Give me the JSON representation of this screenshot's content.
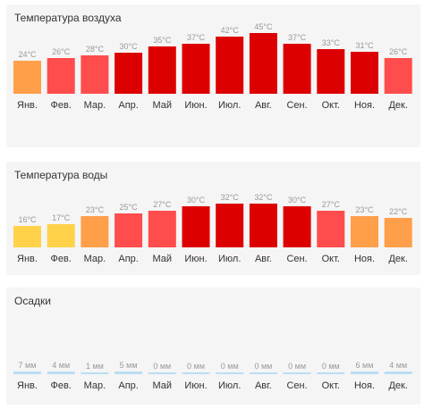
{
  "months": [
    "Янв.",
    "Фев.",
    "Мар.",
    "Апр.",
    "Май",
    "Июн.",
    "Июл.",
    "Авг.",
    "Сен.",
    "Окт.",
    "Ноя.",
    "Дек."
  ],
  "chart_data": [
    {
      "type": "bar",
      "title": "Температура воздуха",
      "unit": "°C",
      "values": [
        24,
        26,
        28,
        30,
        35,
        37,
        42,
        45,
        37,
        33,
        31,
        26
      ],
      "labels": [
        "24°C",
        "26°C",
        "28°C",
        "30°C",
        "35°C",
        "37°C",
        "42°C",
        "45°C",
        "37°C",
        "33°C",
        "31°C",
        "26°C"
      ],
      "colors": [
        "#ff9f4a",
        "#ff4c4c",
        "#ff4c4c",
        "#dd0000",
        "#dd0000",
        "#dd0000",
        "#dd0000",
        "#dd0000",
        "#dd0000",
        "#dd0000",
        "#dd0000",
        "#ff4c4c"
      ]
    },
    {
      "type": "bar",
      "title": "Температура воды",
      "unit": "°C",
      "values": [
        16,
        17,
        23,
        25,
        27,
        30,
        32,
        32,
        30,
        27,
        23,
        22
      ],
      "labels": [
        "16°C",
        "17°C",
        "23°C",
        "25°C",
        "27°C",
        "30°C",
        "32°C",
        "32°C",
        "30°C",
        "27°C",
        "23°C",
        "22°C"
      ],
      "colors": [
        "#ffd24a",
        "#ffd24a",
        "#ff9f4a",
        "#ff4c4c",
        "#ff4c4c",
        "#dd0000",
        "#dd0000",
        "#dd0000",
        "#dd0000",
        "#ff4c4c",
        "#ff9f4a",
        "#ff9f4a"
      ]
    },
    {
      "type": "bar",
      "title": "Осадки",
      "unit": "мм",
      "values": [
        7,
        4,
        1,
        5,
        0,
        0,
        0,
        0,
        0,
        0,
        6,
        4
      ],
      "labels": [
        "7 мм",
        "4 мм",
        "1 мм",
        "5 мм",
        "0 мм",
        "0 мм",
        "0 мм",
        "0 мм",
        "0 мм",
        "0 мм",
        "6 мм",
        "4 мм"
      ],
      "colors": [
        "#b9ddf2",
        "#b9ddf2",
        "#b9ddf2",
        "#b9ddf2",
        "#b9ddf2",
        "#b9ddf2",
        "#b9ddf2",
        "#b9ddf2",
        "#b9ddf2",
        "#b9ddf2",
        "#b9ddf2",
        "#b9ddf2"
      ]
    }
  ],
  "colors": {
    "value_label": "#999999",
    "month_label": "#333333"
  }
}
